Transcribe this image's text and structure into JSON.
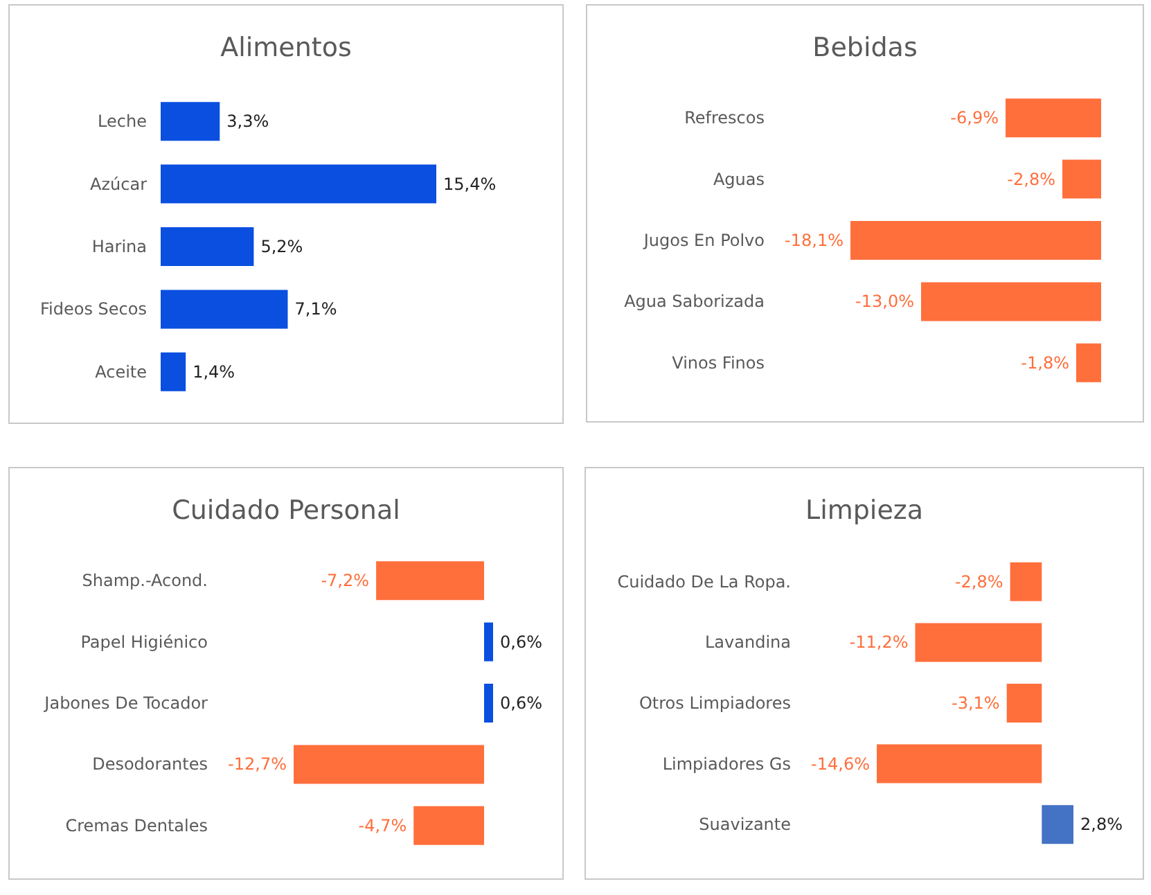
{
  "chart_data": [
    {
      "type": "bar",
      "orientation": "horizontal",
      "title": "Alimentos",
      "categories": [
        "Leche",
        "Azúcar",
        "Harina",
        "Fideos Secos",
        "Aceite"
      ],
      "values": [
        3.3,
        15.4,
        5.2,
        7.1,
        1.4
      ],
      "value_labels": [
        "3,3%",
        "15,4%",
        "5,2%",
        "7,1%",
        "1,4%"
      ],
      "colors": [
        "#0a4fe0",
        "#0a4fe0",
        "#0a4fe0",
        "#0a4fe0",
        "#0a4fe0"
      ]
    },
    {
      "type": "bar",
      "orientation": "horizontal",
      "title": "Bebidas",
      "categories": [
        "Refrescos",
        "Aguas",
        "Jugos En Polvo",
        "Agua Saborizada",
        "Vinos Finos"
      ],
      "values": [
        -6.9,
        -2.8,
        -18.1,
        -13.0,
        -1.8
      ],
      "value_labels": [
        "-6,9%",
        "-2,8%",
        "-18,1%",
        "-13,0%",
        "-1,8%"
      ],
      "colors": [
        "#ff6f3c",
        "#ff6f3c",
        "#ff6f3c",
        "#ff6f3c",
        "#ff6f3c"
      ]
    },
    {
      "type": "bar",
      "orientation": "horizontal",
      "title": "Cuidado Personal",
      "categories": [
        "Shamp.-Acond.",
        "Papel Higiénico",
        "Jabones De Tocador",
        "Desodorantes",
        "Cremas Dentales"
      ],
      "values": [
        -7.2,
        0.6,
        0.6,
        -12.7,
        -4.7
      ],
      "value_labels": [
        "-7,2%",
        "0,6%",
        "0,6%",
        "-12,7%",
        "-4,7%"
      ],
      "colors": [
        "#ff6f3c",
        "#0a4fe0",
        "#0a4fe0",
        "#ff6f3c",
        "#ff6f3c"
      ]
    },
    {
      "type": "bar",
      "orientation": "horizontal",
      "title": "Limpieza",
      "categories": [
        "Cuidado De La Ropa.",
        "Lavandina",
        "Otros Limpiadores",
        "Limpiadores Gs",
        "Suavizante"
      ],
      "values": [
        -2.8,
        -11.2,
        -3.1,
        -14.6,
        2.8
      ],
      "value_labels": [
        "-2,8%",
        "-11,2%",
        "-3,1%",
        "-14,6%",
        "2,8%"
      ],
      "colors": [
        "#ff6f3c",
        "#ff6f3c",
        "#ff6f3c",
        "#ff6f3c",
        "#4472c4"
      ]
    }
  ]
}
